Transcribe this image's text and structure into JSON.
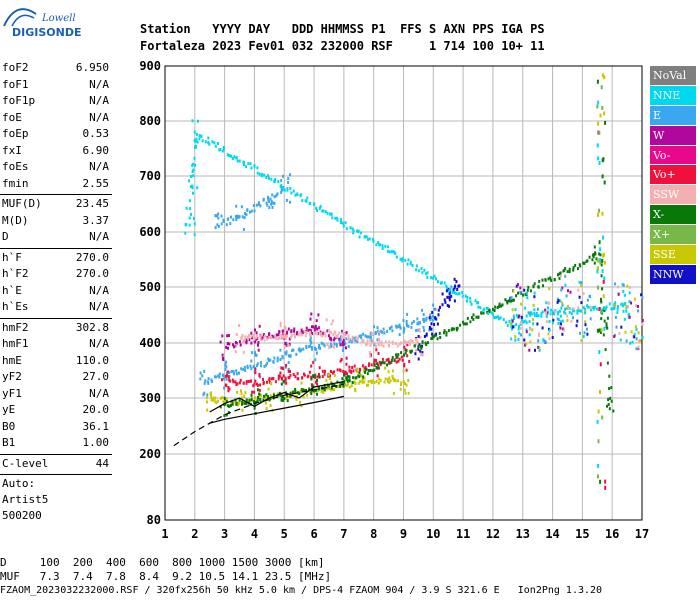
{
  "logo": {
    "line1": "Lowell",
    "line2": "DIGISONDE"
  },
  "header": {
    "row1": "Station   YYYY DAY   DDD HHMMSS P1  FFS S AXN PPS IGA PS",
    "row2": "Fortaleza 2023 Fev01 032 232000 RSF     1 714 100 10+ 11"
  },
  "params": {
    "group1": [
      {
        "label": "foF2",
        "value": "6.950"
      },
      {
        "label": "foF1",
        "value": "N/A"
      },
      {
        "label": "foF1p",
        "value": "N/A"
      },
      {
        "label": "foE",
        "value": "N/A"
      },
      {
        "label": "foEp",
        "value": "0.53"
      },
      {
        "label": "fxI",
        "value": "6.90"
      },
      {
        "label": "foEs",
        "value": "N/A"
      },
      {
        "label": "fmin",
        "value": "2.55"
      }
    ],
    "group2": [
      {
        "label": "MUF(D)",
        "value": "23.45"
      },
      {
        "label": "M(D)",
        "value": "3.37"
      },
      {
        "label": "D",
        "value": "N/A"
      }
    ],
    "group3": [
      {
        "label": "h`F",
        "value": "270.0"
      },
      {
        "label": "h`F2",
        "value": "270.0"
      },
      {
        "label": "h`E",
        "value": "N/A"
      },
      {
        "label": "h`Es",
        "value": "N/A"
      }
    ],
    "group4": [
      {
        "label": "hmF2",
        "value": "302.8"
      },
      {
        "label": "hmF1",
        "value": "N/A"
      },
      {
        "label": "hmE",
        "value": "110.0"
      },
      {
        "label": "yF2",
        "value": "27.0"
      },
      {
        "label": "yF1",
        "value": "N/A"
      },
      {
        "label": "yE",
        "value": "20.0"
      },
      {
        "label": "B0",
        "value": "36.1"
      },
      {
        "label": "B1",
        "value": "1.00"
      }
    ],
    "clevel": {
      "label": "C-level",
      "value": "44"
    },
    "auto": [
      "Auto:",
      "Artist5",
      "500200"
    ]
  },
  "bottom": {
    "row1": "D     100  200  400  600  800 1000 1500 3000 [km]",
    "row2": "MUF   7.3  7.4  7.8  8.4  9.2 10.5 14.1 23.5 [MHz]",
    "row3": "FZAOM_2023032232000.RSF / 320fx256h 50 kHz 5.0 km / DPS-4 FZAOM 904 / 3.9 S 321.6 E   Ion2Png 1.3.20"
  },
  "legend": [
    {
      "label": "NoVal",
      "color": "#7f7f7f"
    },
    {
      "label": "NNE",
      "color": "#00d8f0"
    },
    {
      "label": "E",
      "color": "#3aa8f0"
    },
    {
      "label": "W",
      "color": "#b0089c"
    },
    {
      "label": "Vo-",
      "color": "#e8088c"
    },
    {
      "label": "Vo+",
      "color": "#f0103c"
    },
    {
      "label": "SSW",
      "color": "#f4b0b0"
    },
    {
      "label": "X-",
      "color": "#087808"
    },
    {
      "label": "X+",
      "color": "#78b848"
    },
    {
      "label": "SSE",
      "color": "#c8c800"
    },
    {
      "label": "NNW",
      "color": "#1010c8"
    }
  ],
  "chart_data": {
    "type": "scatter",
    "title": "",
    "xlabel": "",
    "ylabel": "",
    "xlim": [
      1,
      17
    ],
    "ylim": [
      80,
      900
    ],
    "xticks": [
      1,
      2,
      3,
      4,
      5,
      6,
      7,
      8,
      9,
      10,
      11,
      12,
      13,
      14,
      15,
      16,
      17
    ],
    "yticks": [
      80,
      200,
      300,
      400,
      500,
      600,
      700,
      800,
      900
    ],
    "grid": true,
    "legend_position": "right",
    "series": [
      {
        "mode": "E",
        "points": [
          [
            2.3,
            330
          ],
          [
            3,
            345
          ],
          [
            4,
            360
          ],
          [
            5,
            380
          ],
          [
            6,
            395
          ],
          [
            7,
            405
          ],
          [
            8,
            418
          ],
          [
            9,
            432
          ],
          [
            9.5,
            440
          ],
          [
            10,
            450
          ]
        ]
      },
      {
        "mode": "E",
        "points": [
          [
            2.8,
            615
          ],
          [
            3.5,
            630
          ],
          [
            4.5,
            665
          ],
          [
            5,
            680
          ]
        ]
      },
      {
        "mode": "NNW",
        "points": [
          [
            9.5,
            395
          ],
          [
            10,
            440
          ],
          [
            10.4,
            480
          ],
          [
            10.7,
            500
          ]
        ]
      },
      {
        "mode": "Vo+",
        "points": [
          [
            3,
            330
          ],
          [
            4,
            330
          ],
          [
            5,
            340
          ],
          [
            6,
            345
          ],
          [
            7,
            350
          ],
          [
            8,
            365
          ],
          [
            9,
            375
          ]
        ]
      },
      {
        "mode": "SSE",
        "points": [
          [
            2.5,
            300
          ],
          [
            3.5,
            295
          ],
          [
            4.5,
            305
          ],
          [
            5.5,
            310
          ],
          [
            6.5,
            320
          ],
          [
            7.5,
            330
          ],
          [
            8.5,
            335
          ],
          [
            9,
            330
          ]
        ]
      },
      {
        "mode": "W",
        "points": [
          [
            3,
            395
          ],
          [
            4,
            410
          ],
          [
            5,
            420
          ],
          [
            6,
            430
          ],
          [
            7,
            400
          ]
        ]
      },
      {
        "mode": "SSW",
        "points": [
          [
            3.5,
            410
          ],
          [
            5,
            415
          ],
          [
            6.5,
            420
          ],
          [
            8,
            400
          ],
          [
            9.5,
            405
          ]
        ]
      },
      {
        "mode": "X-",
        "points": [
          [
            3,
            290
          ],
          [
            4,
            300
          ],
          [
            5,
            310
          ],
          [
            6,
            320
          ],
          [
            7,
            330
          ],
          [
            15.5,
            560
          ],
          [
            15.7,
            440
          ],
          [
            15.9,
            300
          ]
        ]
      },
      {
        "mode": "NNE",
        "points": [
          [
            1.8,
            620
          ],
          [
            1.9,
            700
          ],
          [
            2,
            780
          ],
          [
            12.7,
            430
          ],
          [
            13.2,
            450
          ],
          [
            14.2,
            460
          ],
          [
            16.5,
            470
          ]
        ]
      }
    ],
    "profile_curve": {
      "x": [
        2.5,
        3,
        4,
        5,
        6,
        7
      ],
      "y": [
        255,
        262,
        272,
        282,
        292,
        303
      ]
    },
    "dashed_curve": {
      "x": [
        1.3,
        2,
        3,
        4,
        5,
        6,
        7
      ],
      "y": [
        215,
        240,
        270,
        290,
        305,
        315,
        325
      ]
    },
    "trace_curve": {
      "x": [
        2.5,
        3,
        3.5,
        4,
        4.5,
        5,
        5.5,
        6,
        6.5,
        7
      ],
      "y": [
        275,
        290,
        300,
        285,
        300,
        310,
        300,
        320,
        325,
        330
      ]
    }
  }
}
